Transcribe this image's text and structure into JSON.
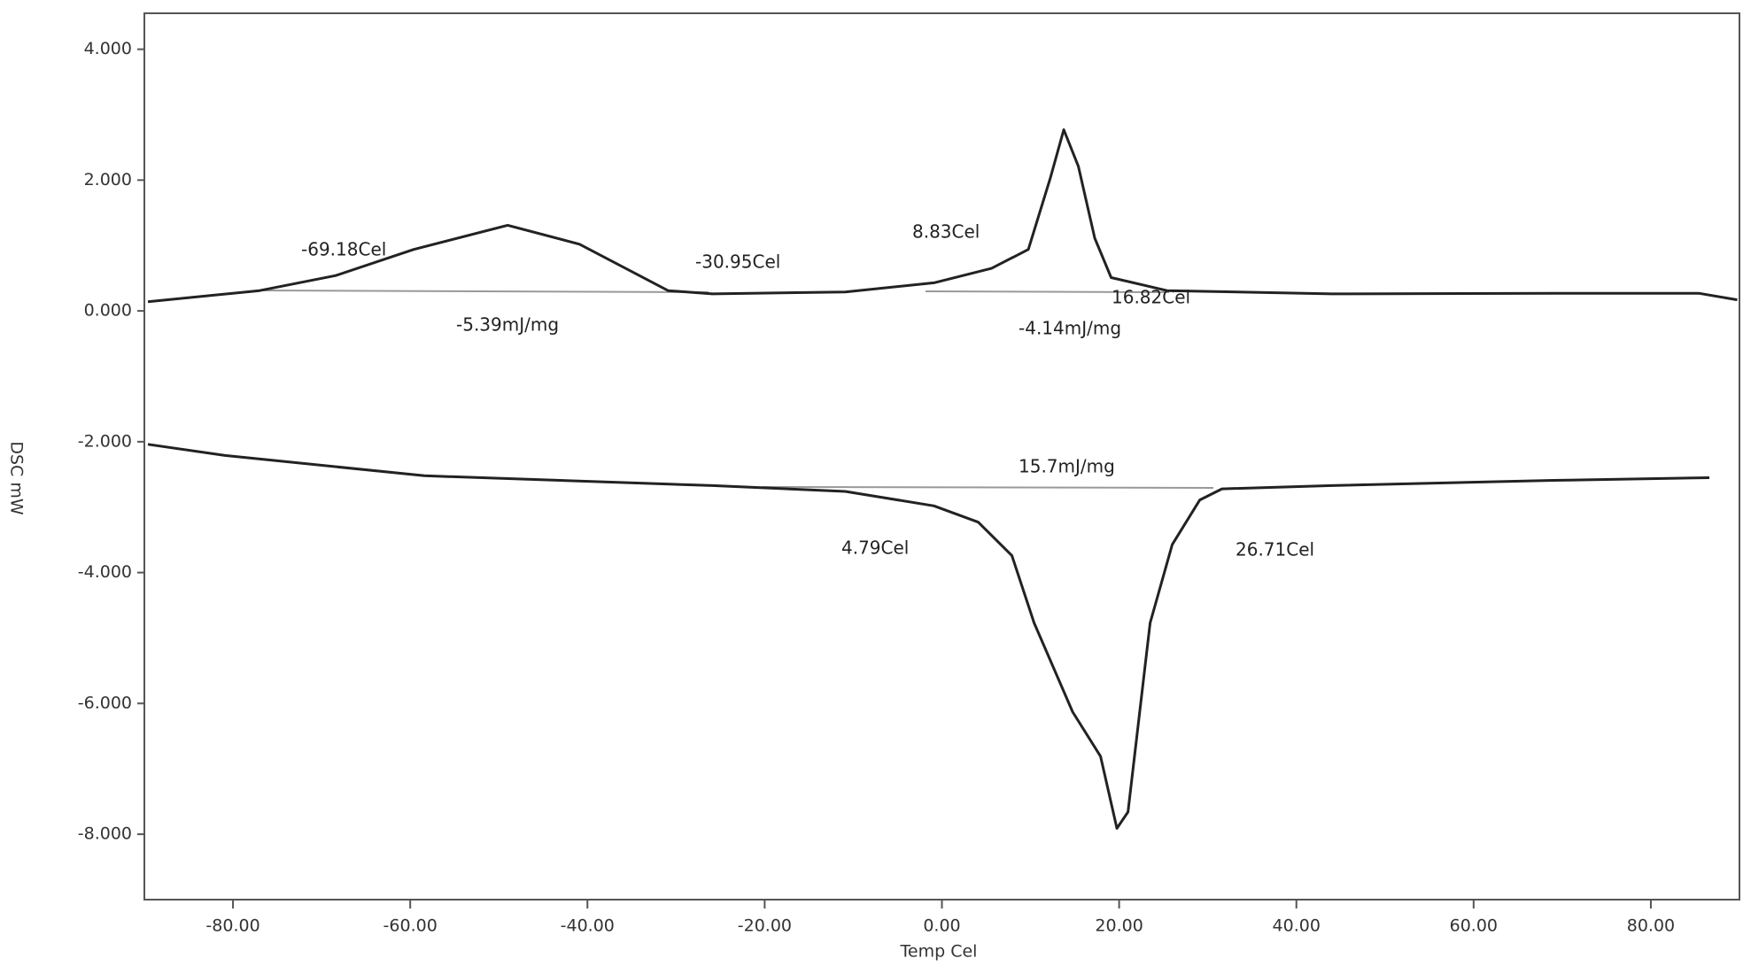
{
  "chart_data": {
    "type": "line",
    "x_label": "Temp Cel",
    "y_label": "DSC mW",
    "xlim": [
      -90,
      90
    ],
    "ylim": [
      -9.0,
      4.55
    ],
    "xticks": [
      {
        "value": -80,
        "label": "-80.00"
      },
      {
        "value": -60,
        "label": "-60.00"
      },
      {
        "value": -40,
        "label": "-40.00"
      },
      {
        "value": -20,
        "label": "-20.00"
      },
      {
        "value": 0,
        "label": "0.00"
      },
      {
        "value": 20,
        "label": "20.00"
      },
      {
        "value": 40,
        "label": "40.00"
      },
      {
        "value": 60,
        "label": "60.00"
      },
      {
        "value": 80,
        "label": "80.00"
      }
    ],
    "yticks": [
      {
        "value": 4,
        "label": "4.000"
      },
      {
        "value": 2,
        "label": "2.000"
      },
      {
        "value": 0,
        "label": "0.000"
      },
      {
        "value": -2,
        "label": "-2.000"
      },
      {
        "value": -4,
        "label": "-4.000"
      },
      {
        "value": -6,
        "label": "-6.000"
      },
      {
        "value": -8,
        "label": "-8.000"
      }
    ],
    "grid": false,
    "series": [
      {
        "color": "#222222",
        "x": [
          -89.6,
          -77,
          -68.4,
          -59.6,
          -49,
          -40.9,
          -30.9,
          -25.9,
          -10.9,
          -0.9,
          5.6,
          9.75,
          12.25,
          13.75,
          15.4,
          17.25,
          19.1,
          25.4,
          44,
          69,
          85.4,
          89.75
        ],
        "values": [
          0.14,
          0.31,
          0.54,
          0.94,
          1.31,
          1.02,
          0.31,
          0.26,
          0.29,
          0.43,
          0.65,
          0.94,
          2.04,
          2.77,
          2.21,
          1.11,
          0.51,
          0.31,
          0.26,
          0.27,
          0.27,
          0.17
        ]
      },
      {
        "color": "#222222",
        "x": [
          -89.6,
          -80.9,
          -58.4,
          -25.9,
          -10.9,
          -0.9,
          4.1,
          7.9,
          10.4,
          14.75,
          17.9,
          19.75,
          21,
          23.5,
          26,
          29.1,
          31.6,
          44,
          69,
          86.6
        ],
        "values": [
          -2.04,
          -2.21,
          -2.52,
          -2.67,
          -2.76,
          -2.98,
          -3.23,
          -3.74,
          -4.77,
          -6.13,
          -6.81,
          -7.91,
          -7.66,
          -4.77,
          -3.57,
          -2.89,
          -2.72,
          -2.67,
          -2.59,
          -2.55
        ]
      }
    ],
    "annotations": [
      "-69.18Cel",
      "-5.39mJ/mg",
      "-30.95Cel",
      "8.83Cel",
      "16.82Cel",
      "-4.14mJ/mg",
      "15.7mJ/mg",
      "4.79Cel",
      "26.71Cel"
    ]
  }
}
